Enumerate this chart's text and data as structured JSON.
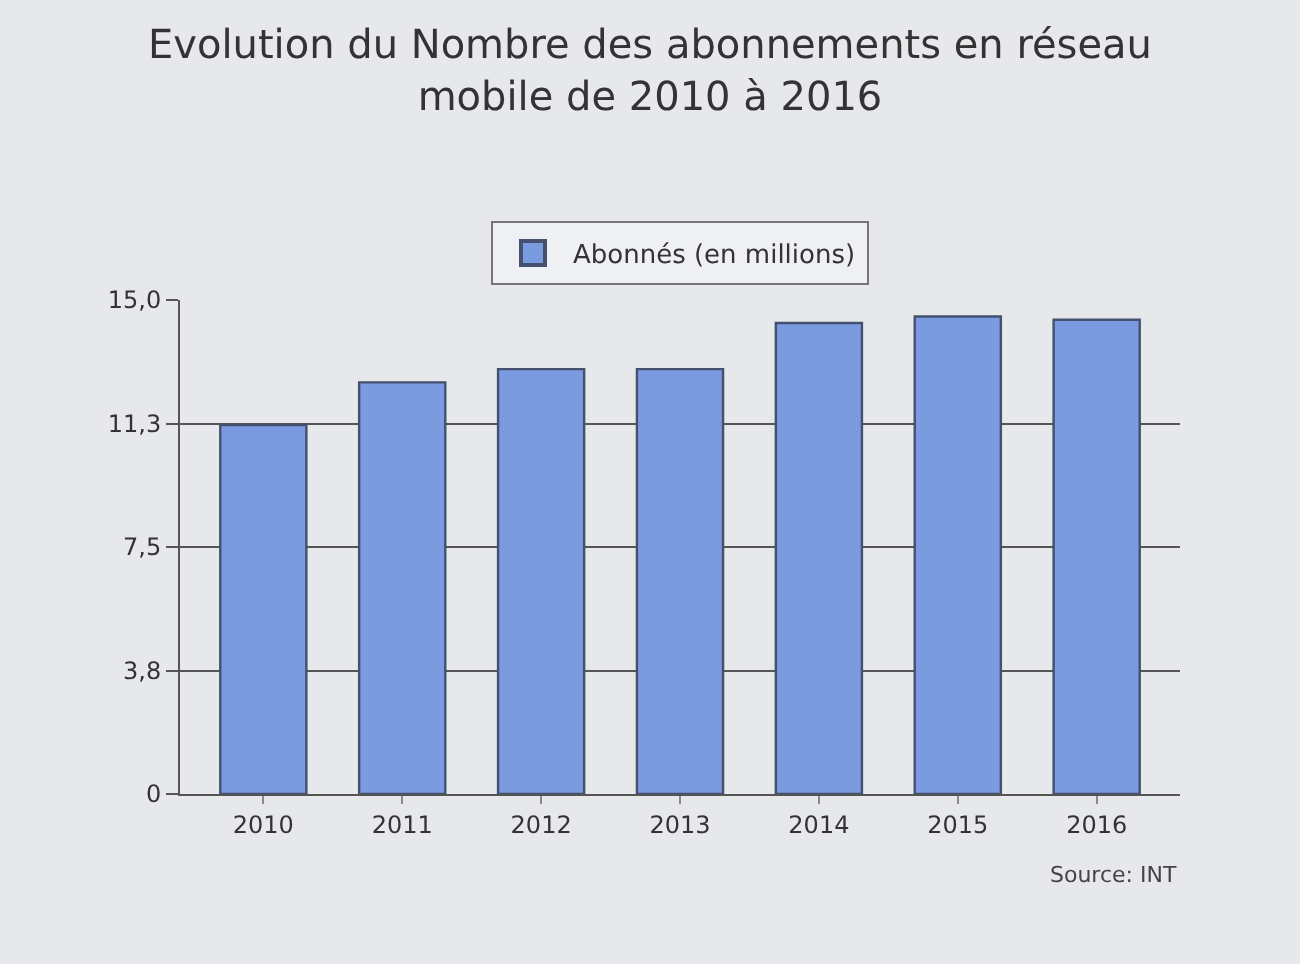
{
  "chart_data": {
    "type": "bar",
    "title": "Evolution du Nombre des abonnements en réseau\nmobile de 2010 à 2016",
    "categories": [
      "2010",
      "2011",
      "2012",
      "2013",
      "2014",
      "2015",
      "2016"
    ],
    "series": [
      {
        "name": "Abonnés (en millions)",
        "color": "#7b9be0",
        "values": [
          11.2,
          12.5,
          12.9,
          12.9,
          14.3,
          14.5,
          14.4
        ]
      }
    ],
    "ylim": [
      0,
      15
    ],
    "yticks": [
      0,
      {
        "value": 3.75,
        "label": "3,8"
      },
      {
        "value": 7.5,
        "label": "7,5"
      },
      {
        "value": 11.25,
        "label": "11,3"
      },
      {
        "value": 15,
        "label": "15,0"
      }
    ],
    "grid": "y",
    "legend": "top",
    "annotations": [
      "Source: INT"
    ]
  }
}
